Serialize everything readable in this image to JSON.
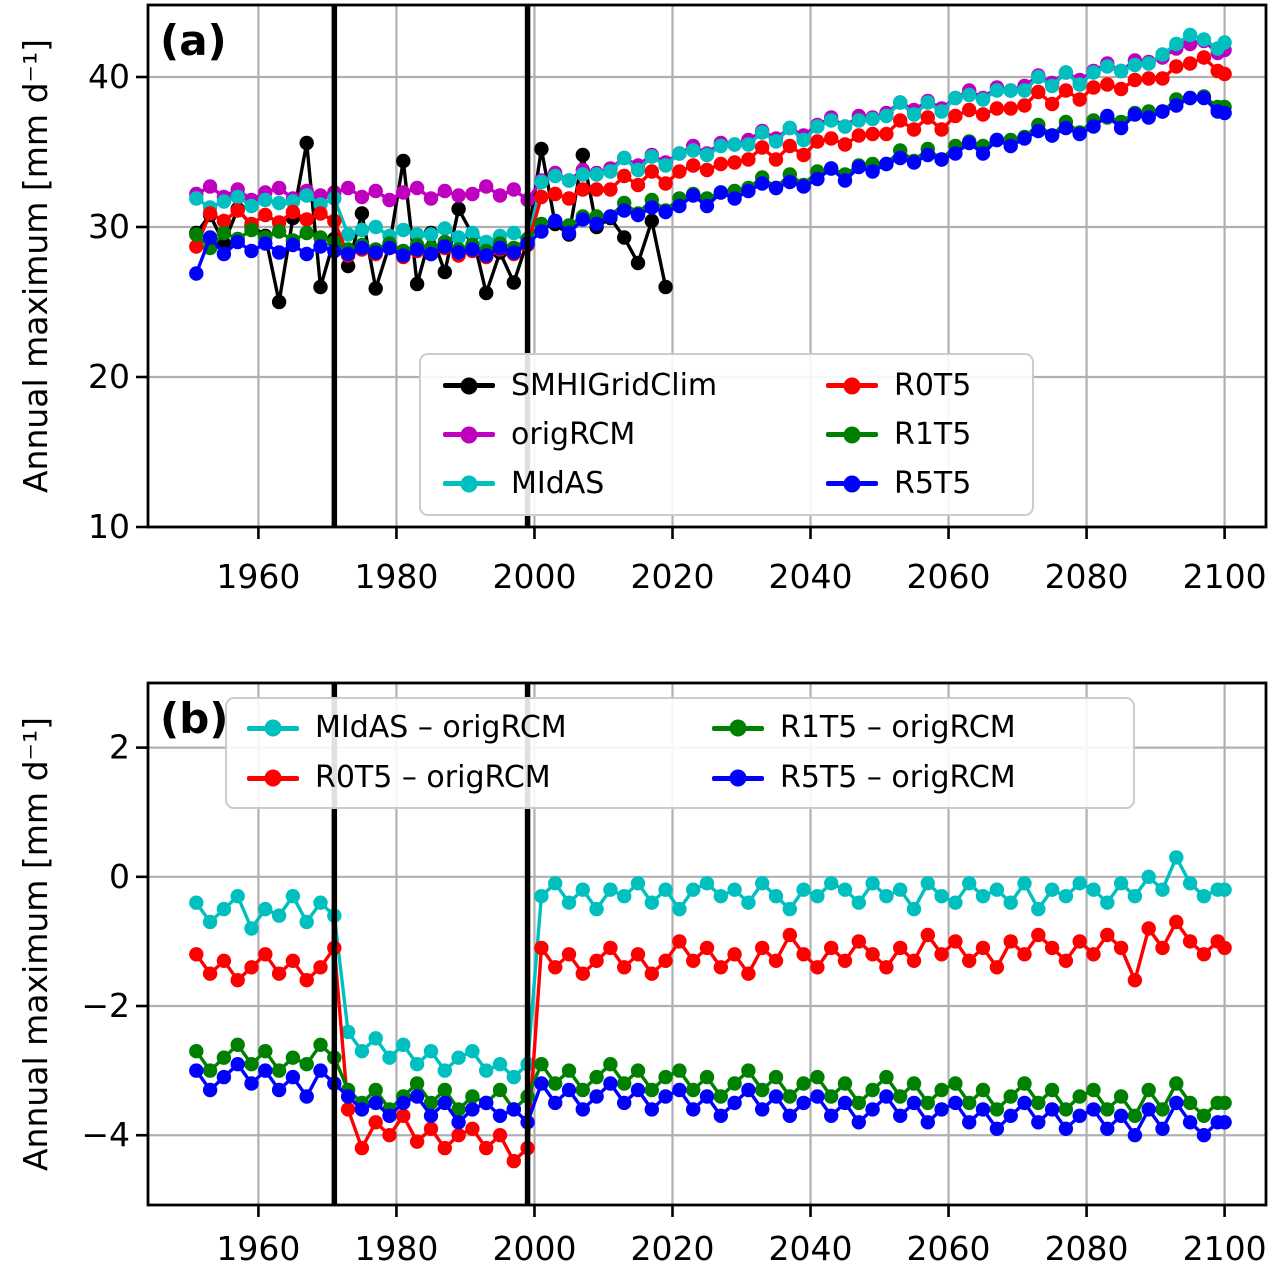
{
  "figure": {
    "background": "#ffffff"
  },
  "chart_data": [
    {
      "id": "a",
      "type": "line",
      "panel_label": "(a)",
      "ylabel": "Annual maximum [mm d⁻¹]",
      "xlabel": "",
      "xlim": [
        1944,
        2106
      ],
      "ylim": [
        10,
        44.8
      ],
      "grid": true,
      "grid_color": "#b0b0b0",
      "x_ticks": [
        1960,
        1980,
        2000,
        2020,
        2040,
        2060,
        2080,
        2100
      ],
      "x_ticklabels": [
        "1960",
        "1980",
        "2000",
        "2020",
        "2040",
        "2060",
        "2080",
        "2100"
      ],
      "y_ticks": [
        40,
        30,
        20,
        10
      ],
      "y_ticklabels": [
        "40",
        "30",
        "20",
        "10"
      ],
      "vlines": [
        1971,
        1999
      ],
      "vline_color": "#000000",
      "years": [
        1951,
        1953,
        1955,
        1957,
        1959,
        1961,
        1963,
        1965,
        1967,
        1969,
        1971,
        1973,
        1975,
        1977,
        1979,
        1981,
        1983,
        1985,
        1987,
        1989,
        1991,
        1993,
        1995,
        1997,
        1999,
        2001,
        2003,
        2005,
        2007,
        2009,
        2011,
        2013,
        2015,
        2017,
        2019,
        2021,
        2023,
        2025,
        2027,
        2029,
        2031,
        2033,
        2035,
        2037,
        2039,
        2041,
        2043,
        2045,
        2047,
        2049,
        2051,
        2053,
        2055,
        2057,
        2059,
        2061,
        2063,
        2065,
        2067,
        2069,
        2071,
        2073,
        2075,
        2077,
        2079,
        2081,
        2083,
        2085,
        2087,
        2089,
        2091,
        2093,
        2095,
        2097,
        2099,
        2100
      ],
      "series": [
        {
          "name": "SMHIGridClim",
          "color": "#000000",
          "years": [
            1951,
            1953,
            1955,
            1957,
            1959,
            1961,
            1963,
            1965,
            1967,
            1969,
            1971,
            1973,
            1975,
            1977,
            1979,
            1981,
            1983,
            1985,
            1987,
            1989,
            1991,
            1993,
            1995,
            1997,
            1999,
            2001,
            2003,
            2005,
            2007,
            2009,
            2011,
            2013,
            2015,
            2017,
            2019
          ],
          "values": [
            29.6,
            30.8,
            28.9,
            31.2,
            30.1,
            29.4,
            25.0,
            30.6,
            35.6,
            26.0,
            29.2,
            27.4,
            30.9,
            25.9,
            28.8,
            34.4,
            26.2,
            29.6,
            27.0,
            31.2,
            29.5,
            25.6,
            28.3,
            26.3,
            29.1,
            35.2,
            30.2,
            29.5,
            34.8,
            30.0,
            30.6,
            29.3,
            27.6,
            30.4,
            26.0
          ]
        },
        {
          "name": "origRCM",
          "color": "#bf00bf",
          "values": [
            32.2,
            32.7,
            32.0,
            32.5,
            31.8,
            32.3,
            32.6,
            31.9,
            32.4,
            32.1,
            32.3,
            32.6,
            32.0,
            32.4,
            31.8,
            32.3,
            32.6,
            31.9,
            32.4,
            32.1,
            32.2,
            32.7,
            32.1,
            32.5,
            31.8,
            33.1,
            33.6,
            33.1,
            33.8,
            33.6,
            33.9,
            34.6,
            34.1,
            34.8,
            34.3,
            34.9,
            35.4,
            34.9,
            35.6,
            35.5,
            35.8,
            36.4,
            35.9,
            36.6,
            36.1,
            36.8,
            37.3,
            36.7,
            37.4,
            37.3,
            37.6,
            38.3,
            37.8,
            38.4,
            37.9,
            38.6,
            39.1,
            38.6,
            39.3,
            39.1,
            39.4,
            40.1,
            39.6,
            40.3,
            39.8,
            40.4,
            40.9,
            40.4,
            41.1,
            41.0,
            41.3,
            41.9,
            42.2,
            42.4,
            41.6,
            41.8
          ]
        },
        {
          "name": "MIdAS",
          "color": "#00bfbf",
          "values": [
            31.9,
            31.3,
            31.7,
            32.0,
            31.4,
            31.8,
            31.6,
            31.7,
            32.1,
            31.5,
            31.9,
            29.5,
            29.8,
            30.0,
            29.4,
            29.8,
            29.5,
            29.5,
            29.9,
            29.3,
            29.6,
            29.0,
            29.4,
            29.6,
            29.0,
            33.0,
            33.4,
            33.1,
            33.5,
            33.5,
            33.7,
            34.6,
            33.8,
            34.7,
            34.1,
            34.9,
            35.1,
            34.8,
            35.4,
            35.5,
            35.5,
            36.3,
            35.7,
            36.6,
            35.8,
            36.7,
            37.1,
            36.7,
            37.1,
            37.2,
            37.4,
            38.3,
            37.5,
            38.3,
            37.7,
            38.6,
            38.8,
            38.5,
            39.1,
            39.1,
            39.1,
            40.0,
            39.4,
            40.3,
            39.5,
            40.3,
            40.7,
            40.4,
            40.8,
            40.9,
            41.5,
            42.2,
            42.8,
            42.5,
            41.9,
            42.3
          ]
        },
        {
          "name": "R0T5",
          "color": "#ff0000",
          "values": [
            28.7,
            30.9,
            30.4,
            31.1,
            30.2,
            30.8,
            30.3,
            31.0,
            30.5,
            30.9,
            30.4,
            28.1,
            28.5,
            28.2,
            28.6,
            28.0,
            28.4,
            28.2,
            28.6,
            28.1,
            28.4,
            28.0,
            28.5,
            28.2,
            28.8,
            32.0,
            32.2,
            31.9,
            32.5,
            32.5,
            32.5,
            33.4,
            32.8,
            33.7,
            32.9,
            33.7,
            34.1,
            33.8,
            34.2,
            34.3,
            34.5,
            35.3,
            34.5,
            35.4,
            34.8,
            35.7,
            35.9,
            35.5,
            36.1,
            36.2,
            36.2,
            37.1,
            36.5,
            37.3,
            36.5,
            37.4,
            37.8,
            37.5,
            37.9,
            37.9,
            38.1,
            39.0,
            38.2,
            39.1,
            38.5,
            39.3,
            39.5,
            39.2,
            39.8,
            39.9,
            39.9,
            40.7,
            40.9,
            41.3,
            40.4,
            40.2
          ]
        },
        {
          "name": "R1T5",
          "color": "#008000",
          "values": [
            29.5,
            28.6,
            29.6,
            29.2,
            29.8,
            29.3,
            29.7,
            29.1,
            29.6,
            29.3,
            29.0,
            28.5,
            28.8,
            28.5,
            28.9,
            28.4,
            28.8,
            28.6,
            29.0,
            28.5,
            28.8,
            28.4,
            28.9,
            28.6,
            29.2,
            30.2,
            30.4,
            30.1,
            30.7,
            30.7,
            30.7,
            31.6,
            30.9,
            31.8,
            31.1,
            31.9,
            32.2,
            31.9,
            32.3,
            32.4,
            32.6,
            33.3,
            32.6,
            33.5,
            32.8,
            33.7,
            33.9,
            33.5,
            34.1,
            34.2,
            34.2,
            35.1,
            34.4,
            35.2,
            34.5,
            35.4,
            35.7,
            35.4,
            35.8,
            35.8,
            36.0,
            36.8,
            36.1,
            37.0,
            36.3,
            37.1,
            37.3,
            37.0,
            37.6,
            37.7,
            37.7,
            38.5,
            38.6,
            38.7,
            38.0,
            38.0
          ]
        },
        {
          "name": "R5T5",
          "color": "#0000ff",
          "values": [
            26.9,
            29.3,
            28.2,
            29.0,
            28.4,
            28.9,
            28.3,
            28.8,
            28.2,
            28.7,
            28.4,
            28.2,
            28.6,
            28.3,
            28.6,
            28.1,
            28.5,
            28.2,
            28.7,
            28.3,
            28.5,
            28.1,
            28.6,
            28.3,
            28.9,
            29.7,
            30.4,
            29.6,
            30.5,
            30.2,
            30.7,
            31.1,
            30.8,
            31.3,
            31.0,
            31.4,
            32.1,
            31.4,
            32.3,
            31.9,
            32.4,
            32.9,
            32.6,
            33.0,
            32.7,
            33.2,
            33.9,
            33.1,
            34.0,
            33.7,
            34.2,
            34.6,
            34.3,
            34.8,
            34.5,
            34.9,
            35.6,
            34.9,
            35.8,
            35.4,
            35.9,
            36.4,
            36.1,
            36.6,
            36.2,
            36.7,
            37.4,
            36.6,
            37.5,
            37.3,
            37.7,
            38.1,
            38.6,
            38.6,
            37.7,
            37.6
          ]
        }
      ],
      "legend": {
        "entries": [
          {
            "label": "SMHIGridClim",
            "color": "#000000"
          },
          {
            "label": "origRCM",
            "color": "#bf00bf"
          },
          {
            "label": "MIdAS",
            "color": "#00bfbf"
          },
          {
            "label": "R0T5",
            "color": "#ff0000"
          },
          {
            "label": "R1T5",
            "color": "#008000"
          },
          {
            "label": "R5T5",
            "color": "#0000ff"
          }
        ]
      }
    },
    {
      "id": "b",
      "type": "line",
      "panel_label": "(b)",
      "ylabel": "Annual maximum [mm d⁻¹]",
      "xlabel": "",
      "xlim": [
        1944,
        2106
      ],
      "ylim": [
        -5.08,
        3.0
      ],
      "grid": true,
      "grid_color": "#b0b0b0",
      "x_ticks": [
        1960,
        1980,
        2000,
        2020,
        2040,
        2060,
        2080,
        2100
      ],
      "x_ticklabels": [
        "1960",
        "1980",
        "2000",
        "2020",
        "2040",
        "2060",
        "2080",
        "2100"
      ],
      "y_ticks": [
        2,
        0,
        -2,
        -4
      ],
      "y_ticklabels": [
        "2",
        "0",
        "−2",
        "−4"
      ],
      "vlines": [
        1971,
        1999
      ],
      "vline_color": "#000000",
      "years": [
        1951,
        1953,
        1955,
        1957,
        1959,
        1961,
        1963,
        1965,
        1967,
        1969,
        1971,
        1973,
        1975,
        1977,
        1979,
        1981,
        1983,
        1985,
        1987,
        1989,
        1991,
        1993,
        1995,
        1997,
        1999,
        2001,
        2003,
        2005,
        2007,
        2009,
        2011,
        2013,
        2015,
        2017,
        2019,
        2021,
        2023,
        2025,
        2027,
        2029,
        2031,
        2033,
        2035,
        2037,
        2039,
        2041,
        2043,
        2045,
        2047,
        2049,
        2051,
        2053,
        2055,
        2057,
        2059,
        2061,
        2063,
        2065,
        2067,
        2069,
        2071,
        2073,
        2075,
        2077,
        2079,
        2081,
        2083,
        2085,
        2087,
        2089,
        2091,
        2093,
        2095,
        2097,
        2099,
        2100
      ],
      "series": [
        {
          "name": "MIdAS – origRCM",
          "color": "#00bfbf",
          "values": [
            -0.4,
            -0.7,
            -0.5,
            -0.3,
            -0.8,
            -0.5,
            -0.6,
            -0.3,
            -0.7,
            -0.4,
            -0.6,
            -2.4,
            -2.7,
            -2.5,
            -2.8,
            -2.6,
            -2.9,
            -2.7,
            -3.0,
            -2.8,
            -2.7,
            -3.0,
            -2.9,
            -3.1,
            -2.9,
            -0.3,
            -0.1,
            -0.4,
            -0.2,
            -0.5,
            -0.2,
            -0.3,
            -0.1,
            -0.4,
            -0.2,
            -0.5,
            -0.2,
            -0.1,
            -0.3,
            -0.2,
            -0.4,
            -0.1,
            -0.3,
            -0.5,
            -0.2,
            -0.3,
            -0.1,
            -0.2,
            -0.4,
            -0.1,
            -0.3,
            -0.2,
            -0.5,
            -0.1,
            -0.3,
            -0.4,
            -0.1,
            -0.3,
            -0.2,
            -0.4,
            -0.1,
            -0.5,
            -0.2,
            -0.3,
            -0.1,
            -0.2,
            -0.4,
            -0.1,
            -0.3,
            0.0,
            -0.2,
            0.3,
            -0.1,
            -0.3,
            -0.2,
            -0.2
          ]
        },
        {
          "name": "R0T5 – origRCM",
          "color": "#ff0000",
          "values": [
            -1.2,
            -1.5,
            -1.3,
            -1.6,
            -1.4,
            -1.2,
            -1.5,
            -1.3,
            -1.6,
            -1.4,
            -1.1,
            -3.6,
            -4.2,
            -3.8,
            -4.0,
            -3.7,
            -4.1,
            -3.9,
            -4.2,
            -4.0,
            -3.9,
            -4.2,
            -4.0,
            -4.4,
            -4.2,
            -1.1,
            -1.4,
            -1.2,
            -1.5,
            -1.3,
            -1.1,
            -1.4,
            -1.2,
            -1.5,
            -1.3,
            -1.0,
            -1.3,
            -1.1,
            -1.4,
            -1.2,
            -1.5,
            -1.1,
            -1.3,
            -0.9,
            -1.2,
            -1.4,
            -1.1,
            -1.3,
            -1.0,
            -1.2,
            -1.4,
            -1.1,
            -1.3,
            -0.9,
            -1.2,
            -1.0,
            -1.3,
            -1.1,
            -1.4,
            -1.0,
            -1.2,
            -0.9,
            -1.1,
            -1.3,
            -1.0,
            -1.2,
            -0.9,
            -1.1,
            -1.6,
            -0.8,
            -1.1,
            -0.7,
            -1.0,
            -1.2,
            -1.0,
            -1.1
          ]
        },
        {
          "name": "R1T5 – origRCM",
          "color": "#008000",
          "values": [
            -2.7,
            -3.0,
            -2.8,
            -2.6,
            -2.9,
            -2.7,
            -3.0,
            -2.8,
            -2.9,
            -2.6,
            -2.8,
            -3.3,
            -3.5,
            -3.3,
            -3.6,
            -3.4,
            -3.2,
            -3.5,
            -3.3,
            -3.6,
            -3.4,
            -3.5,
            -3.3,
            -3.6,
            -3.4,
            -2.9,
            -3.2,
            -3.0,
            -3.3,
            -3.1,
            -2.9,
            -3.2,
            -3.0,
            -3.3,
            -3.1,
            -3.0,
            -3.3,
            -3.1,
            -3.4,
            -3.2,
            -3.0,
            -3.3,
            -3.1,
            -3.4,
            -3.2,
            -3.1,
            -3.4,
            -3.2,
            -3.5,
            -3.3,
            -3.1,
            -3.4,
            -3.2,
            -3.5,
            -3.3,
            -3.2,
            -3.5,
            -3.3,
            -3.6,
            -3.4,
            -3.2,
            -3.5,
            -3.3,
            -3.6,
            -3.4,
            -3.3,
            -3.6,
            -3.4,
            -3.7,
            -3.3,
            -3.6,
            -3.2,
            -3.5,
            -3.7,
            -3.5,
            -3.5
          ]
        },
        {
          "name": "R5T5 – origRCM",
          "color": "#0000ff",
          "values": [
            -3.0,
            -3.3,
            -3.1,
            -2.9,
            -3.2,
            -3.0,
            -3.3,
            -3.1,
            -3.4,
            -3.0,
            -3.2,
            -3.4,
            -3.6,
            -3.5,
            -3.7,
            -3.5,
            -3.4,
            -3.7,
            -3.5,
            -3.8,
            -3.6,
            -3.5,
            -3.7,
            -3.6,
            -3.8,
            -3.2,
            -3.5,
            -3.3,
            -3.6,
            -3.4,
            -3.2,
            -3.5,
            -3.3,
            -3.6,
            -3.4,
            -3.3,
            -3.6,
            -3.4,
            -3.7,
            -3.5,
            -3.3,
            -3.6,
            -3.4,
            -3.7,
            -3.5,
            -3.4,
            -3.7,
            -3.5,
            -3.8,
            -3.6,
            -3.4,
            -3.7,
            -3.5,
            -3.8,
            -3.6,
            -3.5,
            -3.8,
            -3.6,
            -3.9,
            -3.7,
            -3.5,
            -3.8,
            -3.6,
            -3.9,
            -3.7,
            -3.6,
            -3.9,
            -3.7,
            -4.0,
            -3.6,
            -3.9,
            -3.5,
            -3.8,
            -4.0,
            -3.8,
            -3.8
          ]
        }
      ],
      "legend": {
        "entries": [
          {
            "label": "MIdAS – origRCM",
            "color": "#00bfbf"
          },
          {
            "label": "R0T5 – origRCM",
            "color": "#ff0000"
          },
          {
            "label": "R1T5 – origRCM",
            "color": "#008000"
          },
          {
            "label": "R5T5 – origRCM",
            "color": "#0000ff"
          }
        ]
      }
    }
  ]
}
